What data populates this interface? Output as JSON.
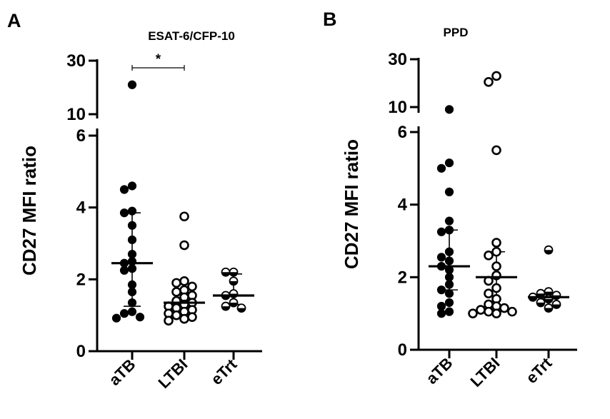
{
  "chart_data": [
    {
      "type": "scatter",
      "panel": "A",
      "title": "ESAT-6/CFP-10",
      "ylabel": "CD27 MFI ratio",
      "ylim": [
        0,
        30
      ],
      "axis_break": [
        6,
        10
      ],
      "yticks_lower": [
        "0",
        "2",
        "4",
        "6"
      ],
      "yticks_upper": [
        "10",
        "30"
      ],
      "categories": [
        "aTB",
        "LTBI",
        "eTrt"
      ],
      "significance": {
        "from": "aTB",
        "to": "LTBI",
        "label": "*"
      },
      "series": [
        {
          "category": "aTB",
          "marker": "filled",
          "median": 2.45,
          "q1": 1.25,
          "q3": 3.85,
          "values": [
            21.0,
            4.6,
            4.5,
            3.9,
            3.85,
            3.5,
            3.1,
            2.7,
            2.5,
            2.45,
            2.3,
            2.25,
            1.85,
            1.65,
            1.35,
            1.1,
            1.05,
            0.95,
            0.92
          ]
        },
        {
          "category": "LTBI",
          "marker": "open",
          "median": 1.35,
          "q1": 1.05,
          "q3": 1.7,
          "values": [
            3.75,
            2.95,
            1.95,
            1.9,
            1.8,
            1.7,
            1.65,
            1.55,
            1.5,
            1.4,
            1.35,
            1.3,
            1.25,
            1.2,
            1.15,
            1.1,
            1.05,
            1.0,
            0.95,
            0.9,
            0.85
          ]
        },
        {
          "category": "eTrt",
          "marker": "half",
          "median": 1.55,
          "q1": 1.3,
          "q3": 2.15,
          "values": [
            2.2,
            2.2,
            1.95,
            1.6,
            1.55,
            1.35,
            1.25,
            1.2
          ]
        }
      ]
    },
    {
      "type": "scatter",
      "panel": "B",
      "title": "PPD",
      "ylabel": "CD27 MFI ratio",
      "ylim": [
        0,
        30
      ],
      "axis_break": [
        6,
        10
      ],
      "yticks_lower": [
        "0",
        "2",
        "4",
        "6"
      ],
      "yticks_upper": [
        "10",
        "30"
      ],
      "categories": [
        "aTB",
        "LTBI",
        "eTrt"
      ],
      "series": [
        {
          "category": "aTB",
          "marker": "filled",
          "median": 2.3,
          "q1": 1.65,
          "q3": 3.3,
          "values": [
            9.0,
            5.15,
            5.0,
            4.35,
            3.55,
            3.3,
            3.25,
            2.7,
            2.55,
            2.45,
            2.3,
            2.2,
            2.0,
            1.8,
            1.65,
            1.55,
            1.3,
            1.2,
            1.05,
            1.0
          ]
        },
        {
          "category": "LTBI",
          "marker": "open",
          "median": 2.0,
          "q1": 1.05,
          "q3": 2.7,
          "values": [
            23.0,
            20.5,
            5.5,
            2.95,
            2.7,
            2.6,
            2.3,
            2.05,
            1.9,
            1.7,
            1.55,
            1.4,
            1.25,
            1.2,
            1.15,
            1.1,
            1.05,
            1.05,
            1.0,
            1.0
          ]
        },
        {
          "category": "eTrt",
          "marker": "half",
          "median": 1.45,
          "q1": 1.4,
          "q3": 1.55,
          "values": [
            2.75,
            1.6,
            1.55,
            1.5,
            1.45,
            1.4,
            1.3,
            1.25,
            1.15
          ]
        }
      ]
    }
  ],
  "colors": {
    "ink": "#000000",
    "background": "#ffffff"
  }
}
